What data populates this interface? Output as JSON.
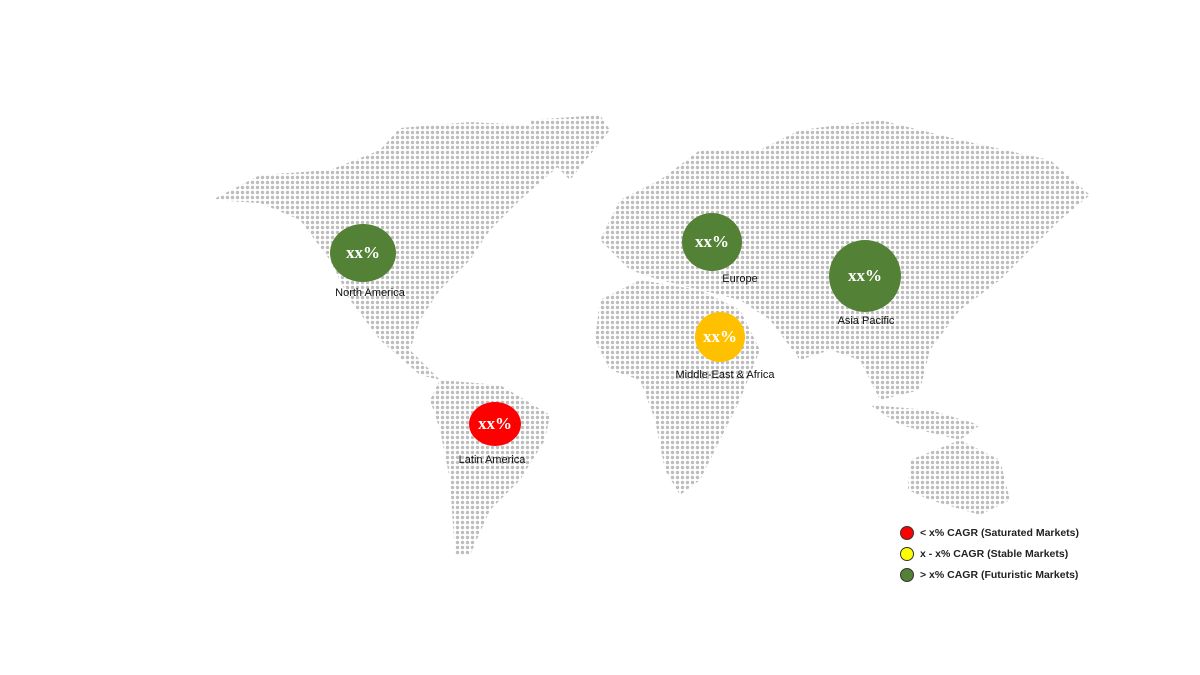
{
  "regions": [
    {
      "name": "North America",
      "value": "xx%",
      "color": "#538135",
      "status": "futuristic"
    },
    {
      "name": "Europe",
      "value": "xx%",
      "color": "#538135",
      "status": "futuristic"
    },
    {
      "name": "Asia Pacific",
      "value": "xx%",
      "color": "#538135",
      "status": "futuristic"
    },
    {
      "name": "Middle-East & Africa",
      "value": "xx%",
      "color": "#FFC000",
      "status": "stable"
    },
    {
      "name": "Latin America",
      "value": "xx%",
      "color": "#FF0000",
      "status": "saturated"
    }
  ],
  "legend": [
    {
      "label": "< x% CAGR (Saturated Markets)",
      "color": "#FF0000"
    },
    {
      "label": "x - x% CAGR (Stable Markets)",
      "color": "#FFFF00"
    },
    {
      "label": "> x% CAGR (Futuristic Markets)",
      "color": "#538135"
    }
  ],
  "map_dot_color": "#BDBDBD"
}
